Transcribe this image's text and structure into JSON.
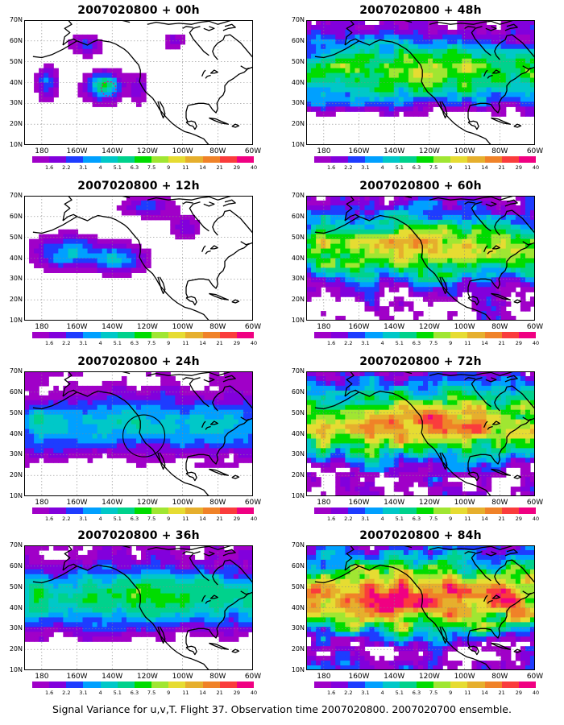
{
  "panels": [
    {
      "id": "p00",
      "title": "2007020800 + 00h",
      "lead": 0
    },
    {
      "id": "p48",
      "title": "2007020800 + 48h",
      "lead": 48
    },
    {
      "id": "p12",
      "title": "2007020800 + 12h",
      "lead": 12
    },
    {
      "id": "p60",
      "title": "2007020800 + 60h",
      "lead": 60
    },
    {
      "id": "p24",
      "title": "2007020800 + 24h",
      "lead": 24
    },
    {
      "id": "p72",
      "title": "2007020800 + 72h",
      "lead": 72
    },
    {
      "id": "p36",
      "title": "2007020800 + 36h",
      "lead": 36
    },
    {
      "id": "p84",
      "title": "2007020800 + 84h",
      "lead": 84
    }
  ],
  "axes": {
    "lat_labels": [
      "70N",
      "60N",
      "50N",
      "40N",
      "30N",
      "20N",
      "10N"
    ],
    "lon_labels": [
      "180",
      "160W",
      "140W",
      "120W",
      "100W",
      "80W",
      "60W"
    ]
  },
  "colorbar": {
    "levels": [
      "1.6",
      "2.2",
      "3.1",
      "4",
      "5.1",
      "6.3",
      "7.5",
      "9",
      "11",
      "14",
      "21",
      "29",
      "40"
    ],
    "colors": [
      "#a000c8",
      "#8200dc",
      "#1e3cff",
      "#00a0ff",
      "#00c8c8",
      "#00d28c",
      "#00dc00",
      "#a0e632",
      "#e6dc32",
      "#e6af2d",
      "#f08228",
      "#fa3c3c",
      "#f00082"
    ]
  },
  "caption": "Signal Variance for u,v,T. Flight 37. Observation time 2007020800. 2007020700 ensemble."
}
